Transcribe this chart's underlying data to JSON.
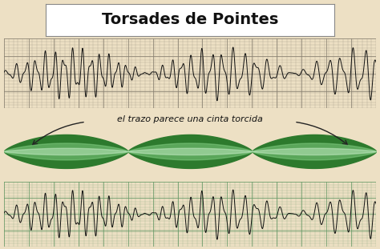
{
  "title": "Torsades de Pointes",
  "annotation_text": "‹el trazo parece una cinta torcida›",
  "annotation_text2": "el trazo parece una cinta torcida",
  "background_color": "#ede0c4",
  "title_bg_color": "#ffffff",
  "ecg_color": "#111111",
  "ribbon_green_dark": "#2d7a2d",
  "ribbon_green_mid": "#4aaa4a",
  "ribbon_green_light": "#80cc80",
  "n_points": 2000,
  "top_panel_bg": "#ccc8b8",
  "bottom_panel_bg": "#b8d4a8",
  "grid_minor_color_top": "#999080",
  "grid_major_color_top": "#888070",
  "grid_minor_color_bot": "#88aa80",
  "grid_major_color_bot": "#669966"
}
